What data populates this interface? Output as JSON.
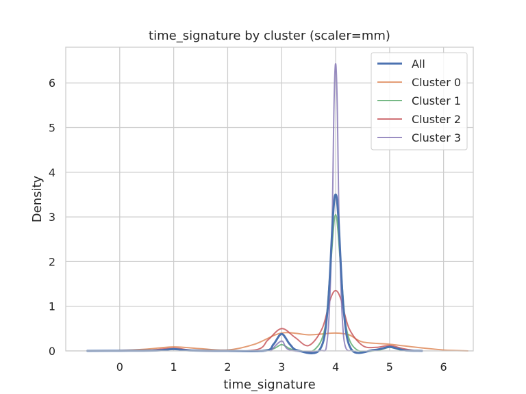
{
  "chart_data": {
    "type": "line",
    "title": "time_signature by cluster (scaler=mm)",
    "xlabel": "time_signature",
    "ylabel": "Density",
    "xlim": [
      -1.0,
      6.55
    ],
    "ylim": [
      0,
      6.8
    ],
    "xticks": [
      0,
      1,
      2,
      3,
      4,
      5,
      6
    ],
    "yticks": [
      0,
      1,
      2,
      3,
      4,
      5,
      6
    ],
    "grid": true,
    "legend_position": "top-right",
    "series": [
      {
        "name": "All",
        "color": "#4c72b0",
        "points": [
          [
            -0.6,
            0
          ],
          [
            0,
            0.002
          ],
          [
            0.7,
            0.01
          ],
          [
            1,
            0.04
          ],
          [
            1.3,
            0.01
          ],
          [
            2,
            0
          ],
          [
            2.7,
            0.005
          ],
          [
            2.85,
            0.15
          ],
          [
            3,
            0.38
          ],
          [
            3.15,
            0.15
          ],
          [
            3.3,
            0.01
          ],
          [
            3.7,
            0.02
          ],
          [
            3.85,
            0.9
          ],
          [
            3.95,
            3.0
          ],
          [
            4,
            3.5
          ],
          [
            4.05,
            3.0
          ],
          [
            4.15,
            0.9
          ],
          [
            4.3,
            0.02
          ],
          [
            4.7,
            0.02
          ],
          [
            4.85,
            0.05
          ],
          [
            5,
            0.09
          ],
          [
            5.15,
            0.05
          ],
          [
            5.3,
            0.01
          ],
          [
            5.6,
            0
          ]
        ]
      },
      {
        "name": "Cluster 0",
        "color": "#dd8452",
        "points": [
          [
            -0.6,
            0
          ],
          [
            0,
            0.01
          ],
          [
            0.5,
            0.04
          ],
          [
            1,
            0.09
          ],
          [
            1.5,
            0.05
          ],
          [
            2,
            0.02
          ],
          [
            2.5,
            0.15
          ],
          [
            3,
            0.4
          ],
          [
            3.5,
            0.36
          ],
          [
            3.75,
            0.38
          ],
          [
            4,
            0.4
          ],
          [
            4.25,
            0.36
          ],
          [
            4.5,
            0.2
          ],
          [
            5,
            0.15
          ],
          [
            5.5,
            0.08
          ],
          [
            6,
            0.02
          ],
          [
            6.2,
            0.01
          ],
          [
            6.45,
            0
          ]
        ]
      },
      {
        "name": "Cluster 1",
        "color": "#55a868",
        "points": [
          [
            2.6,
            0
          ],
          [
            2.85,
            0.05
          ],
          [
            3,
            0.14
          ],
          [
            3.15,
            0.05
          ],
          [
            3.3,
            0.01
          ],
          [
            3.6,
            0.02
          ],
          [
            3.8,
            0.5
          ],
          [
            3.9,
            1.8
          ],
          [
            4,
            3.05
          ],
          [
            4.1,
            1.8
          ],
          [
            4.2,
            0.5
          ],
          [
            4.4,
            0.02
          ],
          [
            4.8,
            0.02
          ],
          [
            5,
            0.08
          ],
          [
            5.2,
            0.02
          ],
          [
            5.4,
            0
          ]
        ]
      },
      {
        "name": "Cluster 2",
        "color": "#c44e52",
        "points": [
          [
            0.5,
            0
          ],
          [
            1,
            0.06
          ],
          [
            1.5,
            0
          ],
          [
            2.5,
            0.02
          ],
          [
            2.75,
            0.25
          ],
          [
            3,
            0.5
          ],
          [
            3.25,
            0.3
          ],
          [
            3.5,
            0.12
          ],
          [
            3.75,
            0.5
          ],
          [
            3.9,
            1.15
          ],
          [
            4,
            1.35
          ],
          [
            4.1,
            1.15
          ],
          [
            4.25,
            0.5
          ],
          [
            4.5,
            0.12
          ],
          [
            4.75,
            0.08
          ],
          [
            5,
            0.12
          ],
          [
            5.25,
            0.05
          ],
          [
            5.5,
            0
          ]
        ]
      },
      {
        "name": "Cluster 3",
        "color": "#8172b3",
        "points": [
          [
            2.8,
            0
          ],
          [
            3,
            0.22
          ],
          [
            3.15,
            0.02
          ],
          [
            3.7,
            0
          ],
          [
            3.85,
            0.3
          ],
          [
            3.93,
            2.6
          ],
          [
            3.97,
            5.5
          ],
          [
            4,
            6.43
          ],
          [
            4.03,
            5.5
          ],
          [
            4.07,
            2.6
          ],
          [
            4.15,
            0.3
          ],
          [
            4.3,
            0
          ]
        ]
      }
    ]
  }
}
